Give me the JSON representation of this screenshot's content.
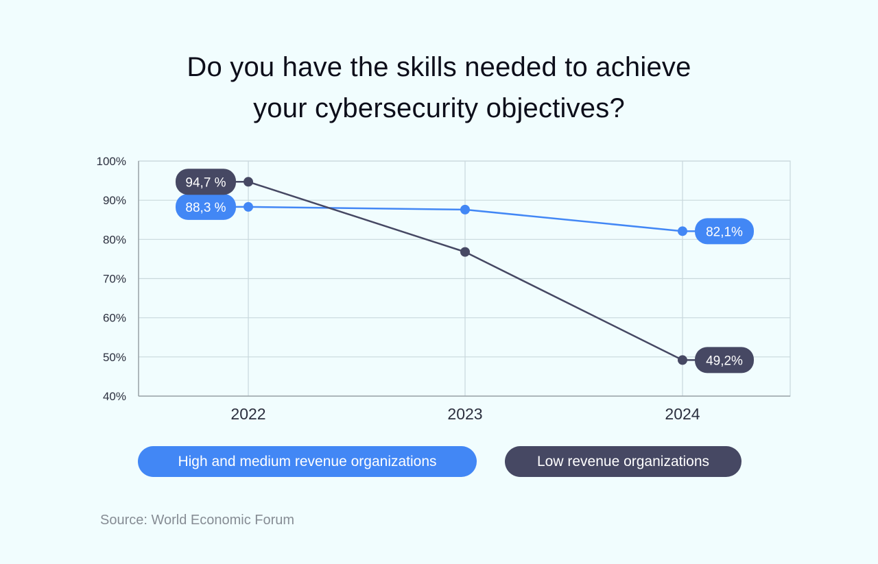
{
  "title_lines": [
    "Do you have the skills needed to achieve",
    "your cybersecurity objectives?"
  ],
  "source": "Source: World Economic Forum",
  "colors": {
    "high": "#4287f5",
    "low": "#464863",
    "grid": "#c9d8dc",
    "axis_text": "#2b2f3e",
    "background": "#f1fdfe"
  },
  "chart_data": {
    "type": "line",
    "categories": [
      "2022",
      "2023",
      "2024"
    ],
    "y_ticks": [
      "100%",
      "90%",
      "80%",
      "70%",
      "60%",
      "50%",
      "40%"
    ],
    "ylim": [
      40,
      100
    ],
    "grid": true,
    "legend_position": "bottom",
    "series": [
      {
        "name": "High and medium revenue organizations",
        "values": [
          88.3,
          87.6,
          82.1
        ],
        "labels": [
          "88,3 %",
          null,
          "82,1%"
        ]
      },
      {
        "name": "Low revenue organizations",
        "values": [
          94.7,
          76.8,
          49.2
        ],
        "labels": [
          "94,7 %",
          null,
          "49,2%"
        ]
      }
    ]
  }
}
